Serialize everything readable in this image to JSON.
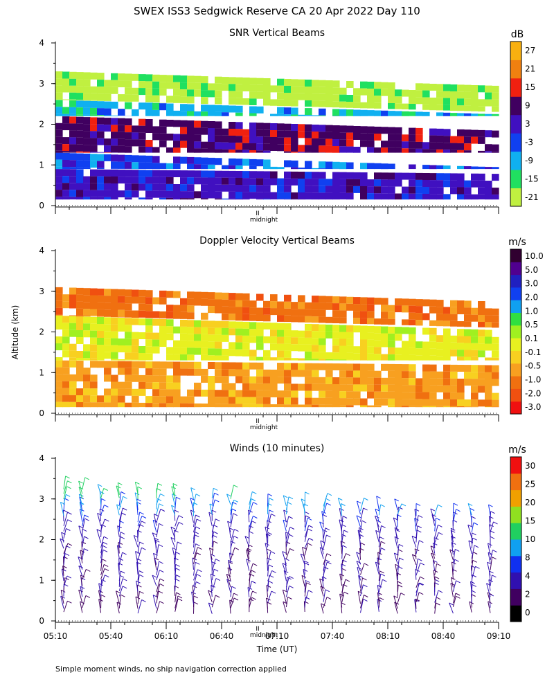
{
  "title": "SWEX ISS3 Sedgwick Reserve CA  20 Apr 2022 Day 110",
  "y_label": "Altitude (km)",
  "x_label": "Time (UT)",
  "footnote": "Simple moment winds, no ship navigation correction applied",
  "midnight_label": "midnight",
  "midnight_marker": "II",
  "colors": {
    "snr_scale": [
      "#c0f040",
      "#20e060",
      "#10b0f0",
      "#1040f0",
      "#4010c0",
      "#400060",
      "#f02010",
      "#f08010",
      "#f8b010"
    ],
    "doppler_scale": [
      "#f01010",
      "#f05010",
      "#f07010",
      "#f8a020",
      "#f8d020",
      "#e8f020",
      "#a0f020",
      "#30e040",
      "#10a0f0",
      "#1040f0",
      "#2020c0",
      "#500090",
      "#300030"
    ],
    "wind_scale": [
      "#000000",
      "#400060",
      "#3010b0",
      "#1030f0",
      "#10a0f0",
      "#20d060",
      "#90e020",
      "#f0a000",
      "#f07010",
      "#f01010"
    ]
  },
  "chart_data": [
    {
      "type": "heatmap",
      "title": "SNR Vertical Beams",
      "unit_label": "dB",
      "ylim": [
        0,
        4
      ],
      "y_ticks": [
        "0",
        "1",
        "2",
        "3",
        "4"
      ],
      "colorbar_labels": [
        "-21",
        "-15",
        "-9",
        "-3",
        "3",
        "9",
        "15",
        "21",
        "27"
      ],
      "colorbar_values": [
        -21,
        -15,
        -9,
        -3,
        3,
        9,
        15,
        21,
        27
      ],
      "x_range": [
        "05:10",
        "09:10"
      ],
      "layers": [
        {
          "y0": 0.15,
          "y1": 0.9,
          "value": 3
        },
        {
          "y0": 0.9,
          "y1": 1.3,
          "value": -3
        },
        {
          "y0": 1.3,
          "y1": 2.2,
          "value": 9
        },
        {
          "y0": 2.2,
          "y1": 2.6,
          "value": -9
        },
        {
          "y0": 2.6,
          "y1": 3.3,
          "value": -21
        }
      ]
    },
    {
      "type": "heatmap",
      "title": "Doppler Velocity Vertical Beams",
      "unit_label": "m/s",
      "ylim": [
        0,
        4
      ],
      "y_ticks": [
        "0",
        "1",
        "2",
        "3",
        "4"
      ],
      "colorbar_labels": [
        "-3.0",
        "-2.0",
        "-1.0",
        "-0.5",
        "-0.1",
        "0.1",
        "0.5",
        "1.0",
        "2.0",
        "3.0",
        "5.0",
        "10.0"
      ],
      "colorbar_values": [
        -3.0,
        -2.0,
        -1.0,
        -0.5,
        -0.1,
        0.1,
        0.5,
        1.0,
        2.0,
        3.0,
        5.0,
        10.0
      ],
      "x_range": [
        "05:10",
        "09:10"
      ],
      "layers": [
        {
          "y0": 0.15,
          "y1": 1.3,
          "value": -0.5
        },
        {
          "y0": 1.3,
          "y1": 2.4,
          "value": 0.1
        },
        {
          "y0": 2.4,
          "y1": 3.1,
          "value": -1.0
        }
      ]
    },
    {
      "type": "scatter",
      "title": "Winds (10 minutes)",
      "unit_label": "m/s",
      "ylim": [
        0,
        4
      ],
      "y_ticks": [
        "0",
        "1",
        "2",
        "3",
        "4"
      ],
      "x_ticks": [
        "05:10",
        "05:40",
        "06:10",
        "06:40",
        "07:10",
        "07:40",
        "08:10",
        "08:40",
        "09:10"
      ],
      "colorbar_labels": [
        "0",
        "2",
        "4",
        "8",
        "10",
        "15",
        "20",
        "25",
        "30"
      ],
      "colorbar_values": [
        0,
        2,
        4,
        8,
        10,
        15,
        20,
        25,
        30
      ],
      "x_range": [
        "05:10",
        "09:10"
      ],
      "wind_profile": [
        {
          "alt": 0.2,
          "speed": 2
        },
        {
          "alt": 0.6,
          "speed": 3
        },
        {
          "alt": 1.0,
          "speed": 3
        },
        {
          "alt": 1.4,
          "speed": 3
        },
        {
          "alt": 1.8,
          "speed": 4
        },
        {
          "alt": 2.2,
          "speed": 6
        },
        {
          "alt": 2.6,
          "speed": 9
        },
        {
          "alt": 3.0,
          "speed": 14
        }
      ]
    }
  ]
}
